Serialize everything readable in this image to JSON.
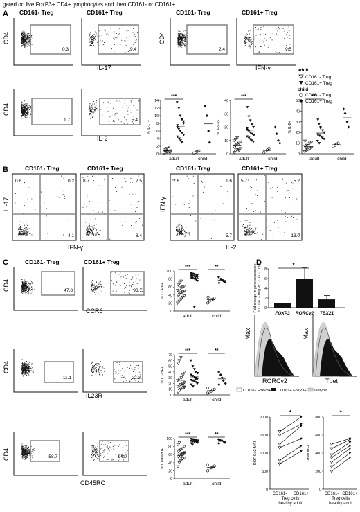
{
  "header": "gated on live FoxP3+ CD4+ lymphocytes and then CD161- or CD161+",
  "panel_letters": [
    "A",
    "B",
    "C",
    "D"
  ],
  "col_titles": {
    "minus": "CD161- Treg",
    "plus": "CD161+ Treg"
  },
  "axes": {
    "cd4": "CD4",
    "il17": "IL-17",
    "ifng": "IFN-γ",
    "il2": "IL-2",
    "ccr6": "CCR6",
    "il23r": "IL23R",
    "cd45ro": "CD45RO",
    "max": "Max",
    "rorcv2": "RORCv2",
    "tbet": "Tbet"
  },
  "flow_values": {
    "a_il17": [
      "0.3",
      "9.4"
    ],
    "a_ifng": [
      "2.4",
      "9.5"
    ],
    "a_il2": [
      "1.7",
      "5.4"
    ],
    "b_il17_ifng_minus": [
      "0.6",
      "0.2",
      "4.1"
    ],
    "b_il17_ifng_plus": [
      "8.7",
      "2.5",
      "8.4"
    ],
    "b_ifng_il2_minus": [
      "2.6",
      "1.6",
      "5.7"
    ],
    "b_ifng_il2_plus": [
      "5.7",
      "5.2",
      "13.0"
    ],
    "c_ccr6": [
      "47.8",
      "93.1"
    ],
    "c_il23r": [
      "11.1",
      "22.3"
    ],
    "c_cd45ro": [
      "58.7",
      "94.0"
    ]
  },
  "legend_a": {
    "adult": "adult",
    "child": "child",
    "items": [
      "CD161- Treg",
      "CD161+ Treg",
      "CD161- Treg",
      "CD161+ Treg"
    ]
  },
  "sig": {
    "three": "***",
    "two": "**",
    "one": "*"
  },
  "groups": [
    "adult",
    "child"
  ],
  "chart_data": [
    {
      "type": "scatter",
      "ylabel": "% IL-17+",
      "yticks": [
        "0",
        "2",
        "4",
        "6",
        "8",
        "10",
        "12",
        "14"
      ],
      "ylim": [
        0,
        14
      ],
      "series": [
        {
          "name": "adult CD161- Treg",
          "values": [
            0.2,
            0.4,
            0.5,
            0.6,
            0.8,
            1.0,
            1.2,
            1.5,
            2.0,
            0.3
          ]
        },
        {
          "name": "adult CD161+ Treg",
          "values": [
            13.5,
            12,
            10,
            9,
            8,
            7,
            6.5,
            6,
            5.5,
            5,
            4.5,
            4,
            3.5,
            3,
            8.5,
            7.5
          ]
        },
        {
          "name": "child CD161- Treg",
          "values": [
            0.2,
            0.4,
            0.6,
            0.8
          ]
        },
        {
          "name": "child CD161+ Treg",
          "values": [
            12.5,
            10,
            6,
            3
          ]
        }
      ]
    },
    {
      "type": "scatter",
      "ylabel": "% IFN-γ+",
      "yticks": [
        "0",
        "10",
        "20",
        "30",
        "40"
      ],
      "ylim": [
        0,
        40
      ],
      "series": [
        {
          "name": "adult CD161- Treg",
          "values": [
            1,
            2,
            3,
            3.5,
            4,
            5,
            6,
            7,
            8,
            9,
            10,
            11,
            12,
            2.5
          ]
        },
        {
          "name": "adult CD161+ Treg",
          "values": [
            35,
            28,
            25,
            22,
            20,
            18,
            17,
            16,
            15,
            14,
            13,
            12,
            11,
            10,
            9,
            19
          ]
        },
        {
          "name": "child CD161- Treg",
          "values": [
            1,
            2,
            3,
            4
          ]
        },
        {
          "name": "child CD161+ Treg",
          "values": [
            20,
            15,
            10,
            8
          ]
        }
      ]
    },
    {
      "type": "scatter",
      "ylabel": "% IL-2+",
      "yticks": [
        "0",
        "10",
        "20",
        "30",
        "40",
        "50"
      ],
      "ylim": [
        0,
        50
      ],
      "series": [
        {
          "name": "adult CD161- Treg",
          "values": [
            2,
            3,
            4,
            5,
            6,
            7,
            8,
            9,
            10,
            11,
            12,
            5.5
          ]
        },
        {
          "name": "adult CD161+ Treg",
          "values": [
            32,
            28,
            25,
            22,
            20,
            18,
            17,
            16,
            15,
            14,
            12,
            10,
            24
          ]
        },
        {
          "name": "child CD161- Treg",
          "values": [
            7,
            8,
            9,
            10
          ]
        },
        {
          "name": "child CD161+ Treg",
          "values": [
            42,
            38,
            30,
            25
          ]
        }
      ]
    },
    {
      "type": "scatter",
      "ylabel": "% CCR6+",
      "yticks": [
        "0",
        "20",
        "40",
        "60",
        "80",
        "100"
      ],
      "ylim": [
        0,
        100
      ],
      "series": [
        {
          "name": "adult CD161- Treg",
          "values": [
            20,
            25,
            30,
            35,
            38,
            40,
            42,
            45,
            48,
            50,
            52,
            55,
            58,
            60,
            62,
            65,
            70,
            75,
            45,
            50
          ]
        },
        {
          "name": "adult CD161+ Treg",
          "values": [
            95,
            93,
            92,
            90,
            89,
            88,
            87,
            86,
            85,
            84,
            83,
            82,
            80,
            78,
            75,
            92,
            88,
            10
          ]
        },
        {
          "name": "child CD161- Treg",
          "values": [
            20,
            25,
            28,
            30,
            32,
            35
          ]
        },
        {
          "name": "child CD161+ Treg",
          "values": [
            85,
            80,
            78,
            75,
            72,
            70
          ]
        }
      ]
    },
    {
      "type": "scatter",
      "ylabel": "% IL-23R+",
      "yticks": [
        "0",
        "10",
        "20",
        "30",
        "40",
        "50",
        "60",
        "70"
      ],
      "ylim": [
        0,
        70
      ],
      "series": [
        {
          "name": "adult CD161- Treg",
          "values": [
            5,
            8,
            10,
            12,
            14,
            15,
            16,
            18,
            20,
            22,
            25,
            28,
            30,
            35,
            40,
            55,
            60,
            65,
            17,
            13
          ]
        },
        {
          "name": "adult CD161+ Treg",
          "values": [
            60,
            50,
            45,
            40,
            38,
            35,
            33,
            32,
            30,
            28,
            26,
            25,
            24,
            22,
            20,
            18,
            15,
            30,
            27
          ]
        },
        {
          "name": "child CD161- Treg",
          "values": [
            3,
            5,
            6,
            8,
            10,
            12
          ]
        },
        {
          "name": "child CD161+ Treg",
          "values": [
            40,
            35,
            30,
            25,
            20,
            18
          ]
        }
      ]
    },
    {
      "type": "scatter",
      "ylabel": "% CD45RO+",
      "yticks": [
        "0",
        "20",
        "40",
        "60",
        "80",
        "100"
      ],
      "ylim": [
        0,
        100
      ],
      "series": [
        {
          "name": "adult CD161- Treg",
          "values": [
            30,
            40,
            45,
            50,
            52,
            55,
            58,
            60,
            62,
            65,
            68,
            70,
            72,
            75,
            80,
            85,
            90,
            55,
            60,
            62
          ]
        },
        {
          "name": "adult CD161+ Treg",
          "values": [
            99,
            98,
            97,
            96,
            95,
            94,
            93,
            92,
            91,
            90,
            88,
            85,
            96,
            94
          ]
        },
        {
          "name": "child CD161- Treg",
          "values": [
            20,
            25,
            28,
            30,
            32,
            35
          ]
        },
        {
          "name": "child CD161+ Treg",
          "values": [
            98,
            96,
            95,
            92,
            90,
            88
          ]
        }
      ]
    },
    {
      "type": "bar",
      "ylabel": "Fold change in gene expression of CD161+Treg vs CD161- Treg",
      "categories": [
        "FOXP3",
        "RORCv2",
        "TBX21"
      ],
      "values": [
        1,
        6,
        1.7
      ],
      "errors": [
        0,
        2.2,
        0.8
      ],
      "yticks": [
        "0",
        "2",
        "4",
        "6",
        "8"
      ],
      "ylim": [
        0,
        8
      ]
    },
    {
      "type": "line",
      "ylabel": "RORCv2 MFI",
      "yticks": [
        "0",
        "500",
        "1000",
        "1500",
        "2000"
      ],
      "ylim": [
        0,
        2000
      ],
      "categories": [
        "CD161- Treg cells healthy adult",
        "CD161+ Treg cells healthy adult"
      ],
      "pairs": [
        [
          1600,
          2000
        ],
        [
          1500,
          1800
        ],
        [
          1250,
          1750
        ],
        [
          1150,
          1400
        ],
        [
          800,
          1200
        ],
        [
          700,
          1050
        ]
      ]
    },
    {
      "type": "line",
      "ylabel": "Tbet MFI",
      "yticks": [
        "0",
        "200",
        "400",
        "600",
        "800"
      ],
      "ylim": [
        0,
        800
      ],
      "categories": [
        "CD161- Treg cells healthy adult",
        "CD161+ Treg cells healthy adult"
      ],
      "pairs": [
        [
          500,
          560
        ],
        [
          450,
          550
        ],
        [
          380,
          520
        ],
        [
          350,
          480
        ],
        [
          300,
          450
        ],
        [
          250,
          400
        ],
        [
          200,
          350
        ]
      ]
    }
  ],
  "hist_legend": [
    "CD161- FoxP3+",
    "CD161+ FoxP3+",
    "Isotype"
  ],
  "pair_xlabels": {
    "minus_top": "CD161-",
    "plus_top": "CD161+",
    "line2": "Treg cells",
    "line3": "healthy adult"
  },
  "colors": {
    "black": "#111111",
    "grey": "#d0d0d0",
    "gate": "#8a8a8a"
  }
}
